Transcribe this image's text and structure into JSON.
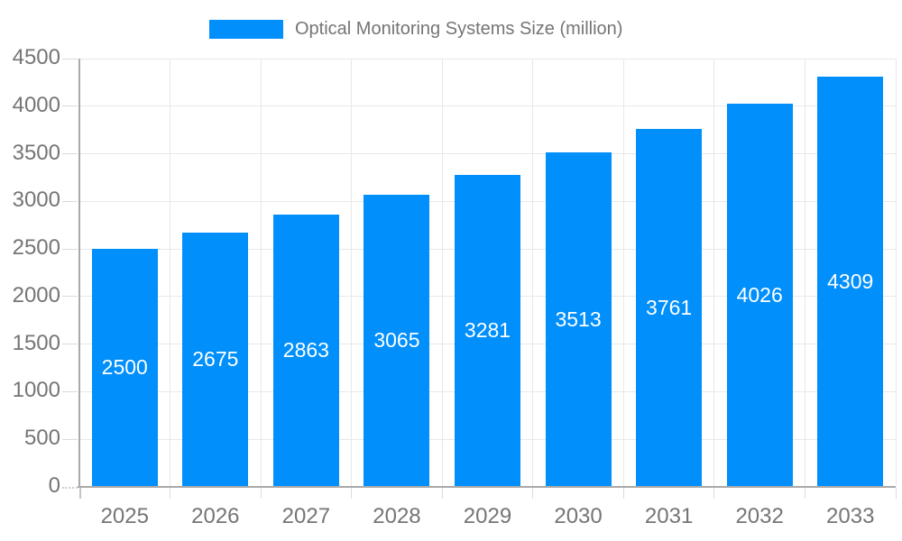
{
  "chart_data": {
    "type": "bar",
    "title": "Optical Monitoring Systems Size (million)",
    "legend_label": "Optical Monitoring Systems Size (million)",
    "legend_position": "top",
    "categories": [
      "2025",
      "2026",
      "2027",
      "2028",
      "2029",
      "2030",
      "2031",
      "2032",
      "2033"
    ],
    "values": [
      2500,
      2675,
      2863,
      3065,
      3281,
      3513,
      3761,
      4026,
      4309
    ],
    "xlabel": "",
    "ylabel": "",
    "ylim": [
      0,
      4500
    ],
    "ytick_step": 500,
    "grid": true,
    "value_labels": "inside-center",
    "colors": {
      "bar": "#008FFB",
      "value_label": "#ffffff",
      "axis_label": "#757575",
      "legend_text": "#757575",
      "grid_line": "#e8e8e8",
      "axis_line": "#a9a9a9",
      "background": "#ffffff"
    }
  }
}
